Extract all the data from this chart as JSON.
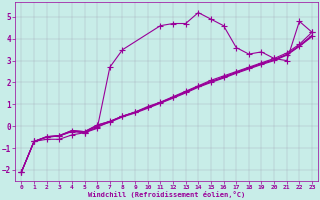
{
  "xlabel": "Windchill (Refroidissement éolien,°C)",
  "background_color": "#c8ede8",
  "line_color": "#990099",
  "grid_color": "#9999aa",
  "xlim": [
    -0.5,
    23.5
  ],
  "ylim": [
    -2.5,
    5.7
  ],
  "yticks": [
    -2,
    -1,
    0,
    1,
    2,
    3,
    4,
    5
  ],
  "xticks": [
    0,
    1,
    2,
    3,
    4,
    5,
    6,
    7,
    8,
    9,
    10,
    11,
    12,
    13,
    14,
    15,
    16,
    17,
    18,
    19,
    20,
    21,
    22,
    23
  ],
  "series": [
    {
      "x": [
        0,
        1,
        2,
        3,
        4,
        5,
        6,
        7,
        8,
        11,
        12,
        13,
        14,
        15,
        16,
        17,
        18,
        19,
        20,
        21,
        22,
        23
      ],
      "y": [
        -2.1,
        -0.7,
        -0.6,
        -0.6,
        -0.4,
        -0.3,
        -0.1,
        2.7,
        3.5,
        4.6,
        4.7,
        4.7,
        5.2,
        4.9,
        4.6,
        3.6,
        3.3,
        3.4,
        3.1,
        3.0,
        4.8,
        4.3
      ],
      "marker": "+",
      "markersize": 4,
      "linewidth": 0.8
    },
    {
      "x": [
        0,
        1,
        2,
        3,
        4,
        5,
        6,
        7,
        8,
        9,
        10,
        11,
        12,
        13,
        14,
        15,
        16,
        17,
        18,
        19,
        20,
        21,
        22,
        23
      ],
      "y": [
        -2.1,
        -0.7,
        -0.5,
        -0.45,
        -0.25,
        -0.3,
        -0.05,
        0.2,
        0.45,
        0.65,
        0.9,
        1.1,
        1.35,
        1.6,
        1.85,
        2.1,
        2.3,
        2.5,
        2.7,
        2.9,
        3.1,
        3.35,
        3.75,
        4.3
      ],
      "marker": "+",
      "markersize": 4,
      "linewidth": 0.8
    },
    {
      "x": [
        0,
        1,
        2,
        3,
        4,
        5,
        6,
        7,
        8,
        9,
        10,
        11,
        12,
        13,
        14,
        15,
        16,
        17,
        18,
        19,
        20,
        21,
        22,
        23
      ],
      "y": [
        -2.1,
        -0.7,
        -0.5,
        -0.45,
        -0.22,
        -0.28,
        0.0,
        0.18,
        0.42,
        0.6,
        0.82,
        1.05,
        1.28,
        1.52,
        1.78,
        2.0,
        2.2,
        2.42,
        2.62,
        2.82,
        3.0,
        3.25,
        3.65,
        4.1
      ],
      "marker": null,
      "markersize": 0,
      "linewidth": 0.8
    },
    {
      "x": [
        0,
        1,
        2,
        3,
        4,
        5,
        6,
        7,
        8,
        9,
        10,
        11,
        12,
        13,
        14,
        15,
        16,
        17,
        18,
        19,
        20,
        21,
        22,
        23
      ],
      "y": [
        -2.1,
        -0.7,
        -0.48,
        -0.43,
        -0.2,
        -0.25,
        0.05,
        0.22,
        0.46,
        0.64,
        0.86,
        1.08,
        1.32,
        1.56,
        1.82,
        2.04,
        2.24,
        2.46,
        2.66,
        2.86,
        3.04,
        3.28,
        3.68,
        4.15
      ],
      "marker": null,
      "markersize": 0,
      "linewidth": 0.8
    },
    {
      "x": [
        0,
        1,
        2,
        3,
        4,
        5,
        6,
        7,
        8,
        9,
        10,
        11,
        12,
        13,
        14,
        15,
        16,
        17,
        18,
        19,
        20,
        21,
        22,
        23
      ],
      "y": [
        -2.1,
        -0.7,
        -0.48,
        -0.43,
        -0.2,
        -0.25,
        0.05,
        0.22,
        0.46,
        0.64,
        0.86,
        1.08,
        1.32,
        1.56,
        1.82,
        2.04,
        2.24,
        2.46,
        2.66,
        2.86,
        3.04,
        3.28,
        3.68,
        4.15
      ],
      "marker": "+",
      "markersize": 4,
      "linewidth": 0.8
    }
  ]
}
